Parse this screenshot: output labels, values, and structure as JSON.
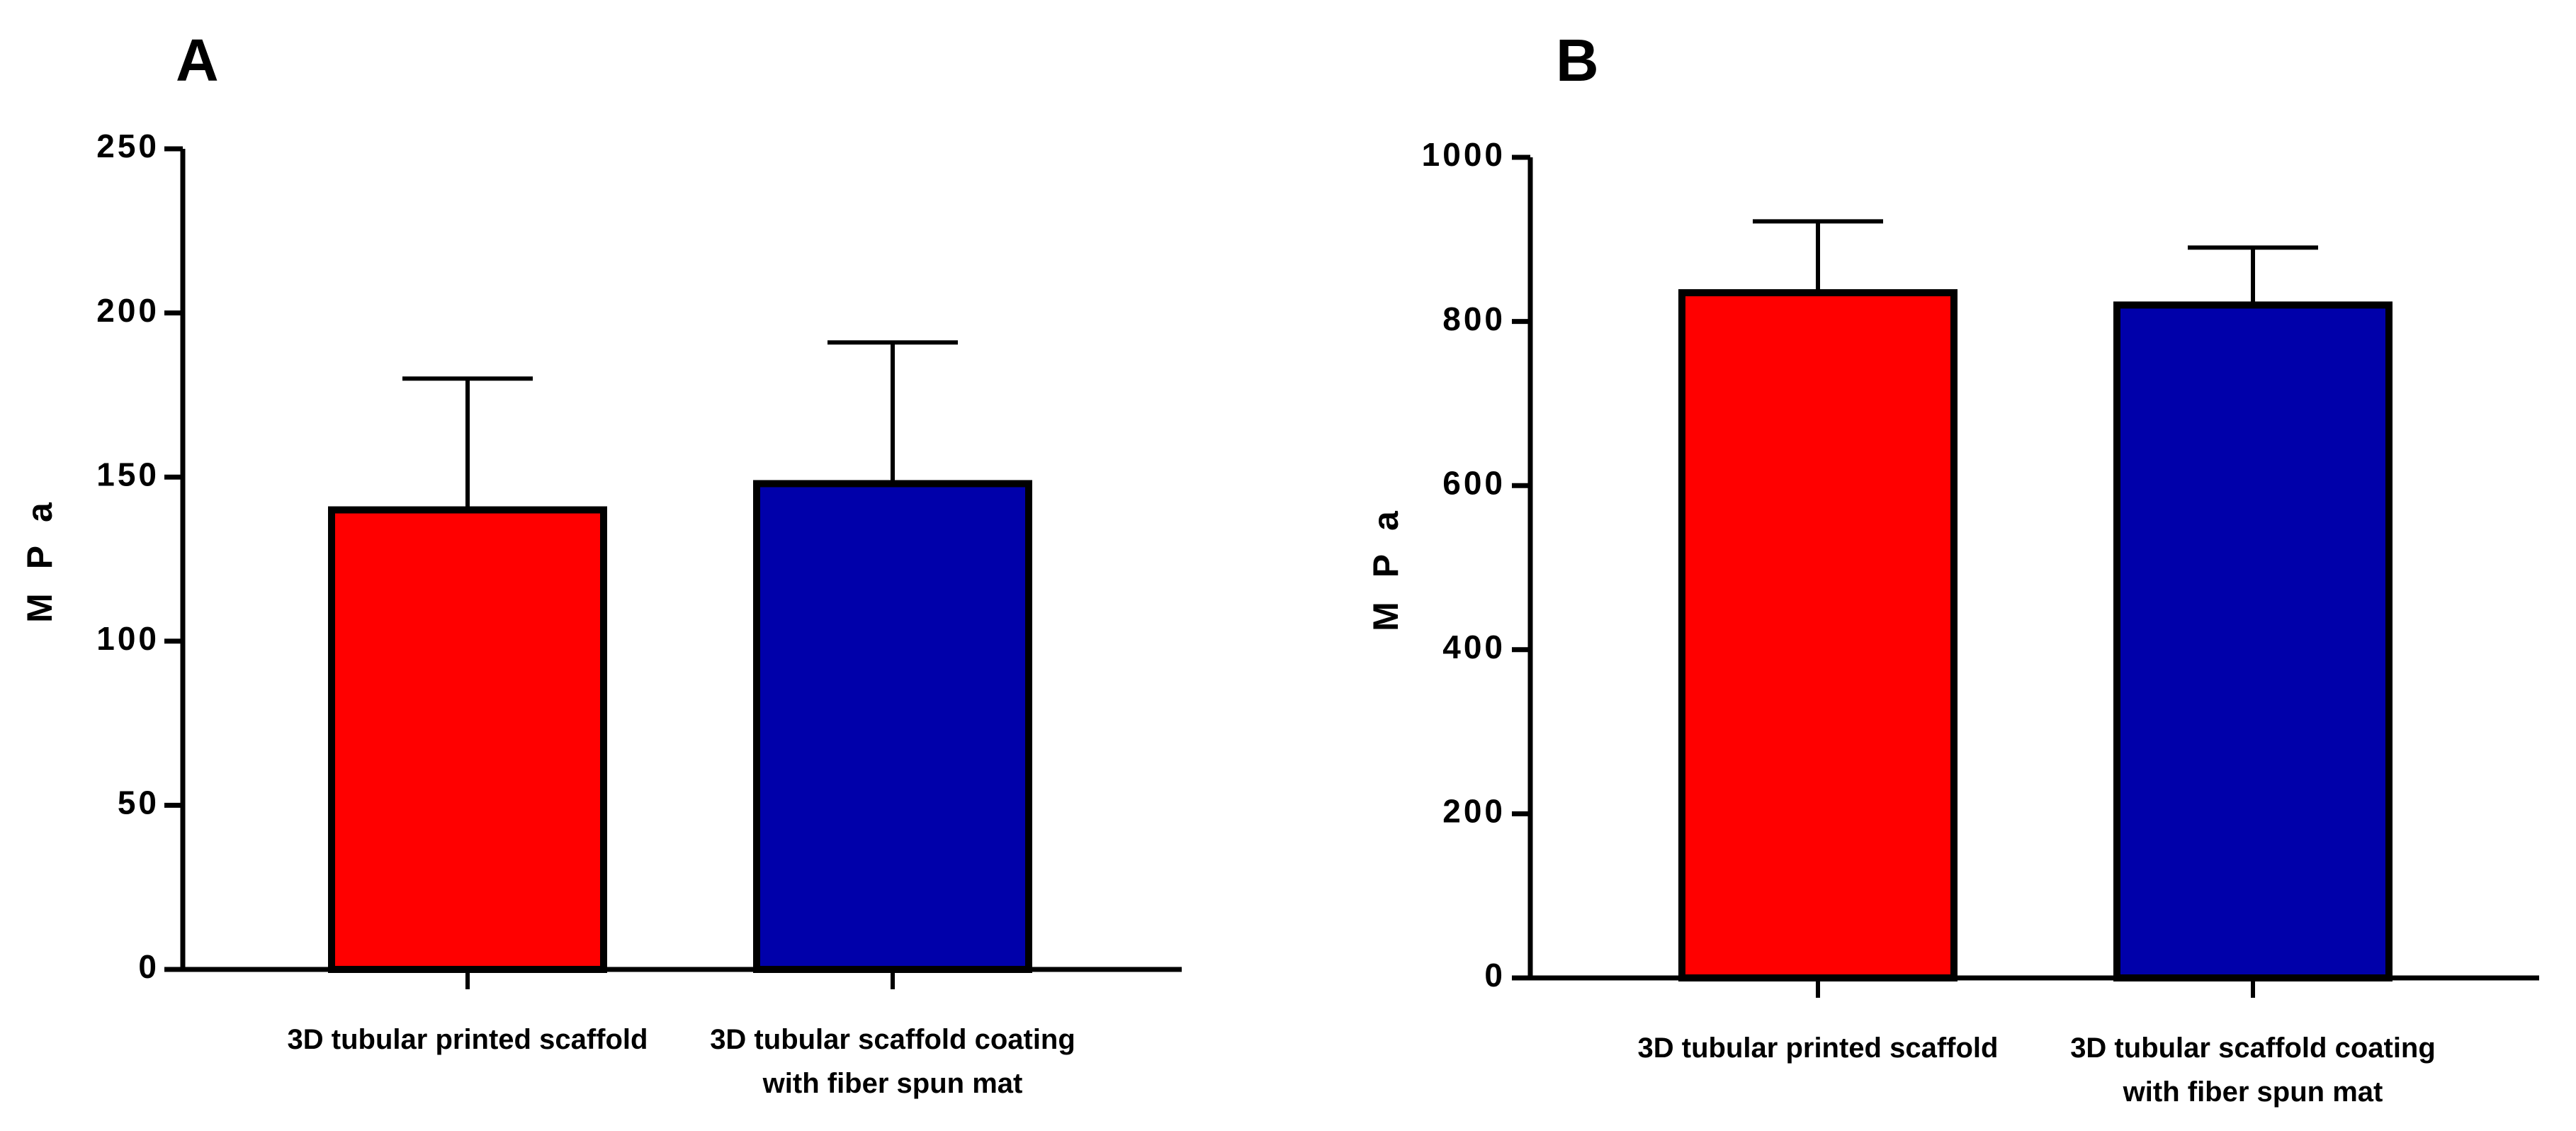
{
  "chart_data": [
    {
      "type": "bar",
      "panel_label": "A",
      "title": "",
      "xlabel": "",
      "ylabel": "M P a",
      "ylim": [
        0,
        250
      ],
      "yticks": [
        0,
        50,
        100,
        150,
        200,
        250
      ],
      "categories": [
        [
          "3D tubular printed scaffold"
        ],
        [
          "3D tubular scaffold coating",
          "with fiber spun mat"
        ]
      ],
      "values": [
        140,
        148
      ],
      "error_upper": [
        180,
        191
      ],
      "colors": [
        "#ff0000",
        "#0000aa"
      ],
      "grid": false
    },
    {
      "type": "bar",
      "panel_label": "B",
      "title": "",
      "xlabel": "",
      "ylabel": "M P a",
      "ylim": [
        0,
        1000
      ],
      "yticks": [
        0,
        200,
        400,
        600,
        800,
        1000
      ],
      "categories": [
        [
          "3D tubular printed scaffold"
        ],
        [
          "3D tubular scaffold coating",
          "with fiber spun mat"
        ]
      ],
      "values": [
        835,
        820
      ],
      "error_upper": [
        922,
        890
      ],
      "colors": [
        "#ff0000",
        "#0000aa"
      ],
      "grid": false
    }
  ]
}
